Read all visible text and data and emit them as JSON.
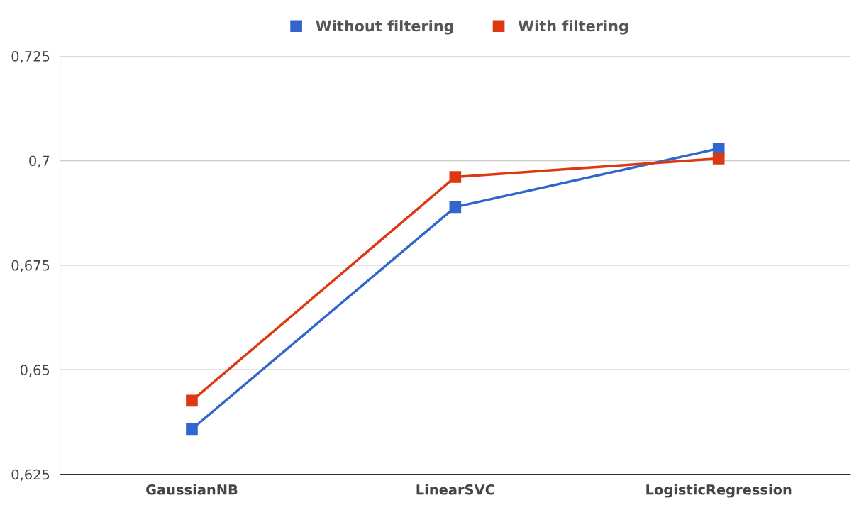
{
  "chart_data": {
    "type": "line",
    "categories": [
      "GaussianNB",
      "LinearSVC",
      "LogisticRegression"
    ],
    "series": [
      {
        "name": "Without filtering",
        "color": "#3366cc",
        "values": [
          0.6358,
          0.6889,
          0.7029
        ]
      },
      {
        "name": "With filtering",
        "color": "#dc3912",
        "values": [
          0.6426,
          0.6961,
          0.7005
        ]
      }
    ],
    "ylim": [
      0.625,
      0.725
    ],
    "yticks": [
      {
        "value": 0.625,
        "label": "0,625"
      },
      {
        "value": 0.65,
        "label": "0,65"
      },
      {
        "value": 0.675,
        "label": "0,675"
      },
      {
        "value": 0.7,
        "label": "0,7"
      },
      {
        "value": 0.725,
        "label": "0,725"
      }
    ],
    "grid": "y",
    "legend": "top",
    "marker": "square",
    "line_style": "solid"
  }
}
